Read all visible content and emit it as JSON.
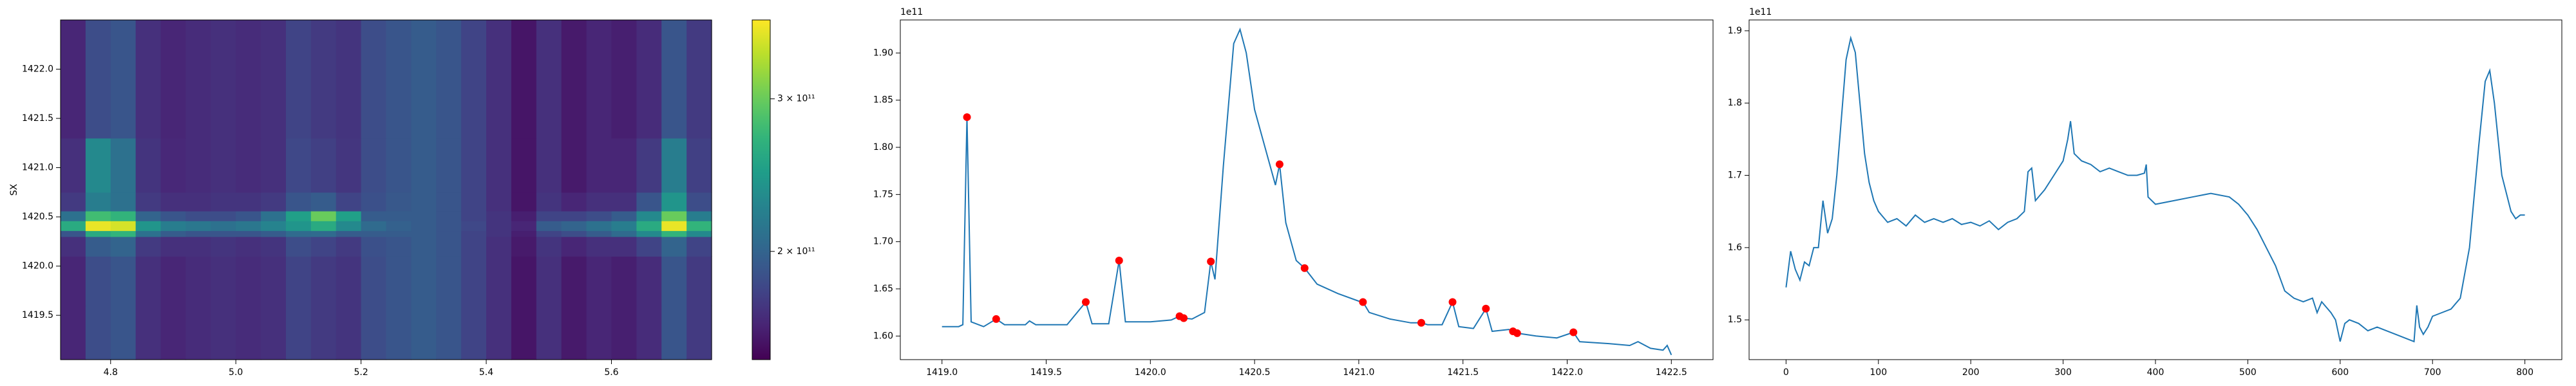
{
  "chart_data": [
    {
      "type": "heatmap",
      "ylabel": "SX",
      "colormap": "viridis",
      "color_scale": "log",
      "clim": [
        150000000000.0,
        370000000000.0
      ],
      "cticks": [
        {
          "value": 200000000000.0,
          "label": "2 × 10¹¹"
        },
        {
          "value": 300000000000.0,
          "label": "3 × 10¹¹"
        }
      ],
      "xlim": [
        4.72,
        5.76
      ],
      "ylim": [
        1419.05,
        1422.5
      ],
      "xticks": [
        4.8,
        {
          "value": 5.0,
          "label": "5.0"
        },
        5.2,
        5.4,
        5.6
      ],
      "yticks": [
        1419.5,
        {
          "value": 1420.0,
          "label": "1420.0"
        },
        1420.5,
        {
          "value": 1421.0,
          "label": "1421.0"
        },
        1421.5,
        {
          "value": 1422.0,
          "label": "1422.0"
        }
      ],
      "x_bins": [
        4.72,
        4.76,
        4.8,
        4.84,
        4.88,
        4.92,
        4.96,
        5.0,
        5.04,
        5.08,
        5.12,
        5.16,
        5.2,
        5.24,
        5.28,
        5.32,
        5.36,
        5.4,
        5.44,
        5.48,
        5.52,
        5.56,
        5.6,
        5.64,
        5.68,
        5.72,
        5.76
      ],
      "y_bins": [
        1419.05,
        1419.6,
        1420.1,
        1420.3,
        1420.36,
        1420.46,
        1420.56,
        1420.75,
        1421.3,
        1422.5
      ],
      "values": [
        [
          165000000000.0,
          185000000000.0,
          190000000000.0,
          170000000000.0,
          165000000000.0,
          168000000000.0,
          170000000000.0,
          168000000000.0,
          170000000000.0,
          180000000000.0,
          175000000000.0,
          172000000000.0,
          185000000000.0,
          190000000000.0,
          195000000000.0,
          190000000000.0,
          180000000000.0,
          170000000000.0,
          158000000000.0,
          170000000000.0,
          160000000000.0,
          165000000000.0,
          162000000000.0,
          168000000000.0,
          190000000000.0,
          175000000000.0
        ],
        [
          165000000000.0,
          185000000000.0,
          190000000000.0,
          170000000000.0,
          165000000000.0,
          168000000000.0,
          170000000000.0,
          168000000000.0,
          170000000000.0,
          180000000000.0,
          175000000000.0,
          172000000000.0,
          185000000000.0,
          190000000000.0,
          195000000000.0,
          190000000000.0,
          180000000000.0,
          170000000000.0,
          158000000000.0,
          170000000000.0,
          160000000000.0,
          165000000000.0,
          162000000000.0,
          168000000000.0,
          190000000000.0,
          175000000000.0
        ],
        [
          170000000000.0,
          195000000000.0,
          200000000000.0,
          175000000000.0,
          170000000000.0,
          170000000000.0,
          172000000000.0,
          170000000000.0,
          172000000000.0,
          185000000000.0,
          180000000000.0,
          175000000000.0,
          187000000000.0,
          190000000000.0,
          195000000000.0,
          190000000000.0,
          180000000000.0,
          170000000000.0,
          160000000000.0,
          172000000000.0,
          165000000000.0,
          170000000000.0,
          170000000000.0,
          180000000000.0,
          200000000000.0,
          180000000000.0
        ],
        [
          190000000000.0,
          260000000000.0,
          270000000000.0,
          210000000000.0,
          195000000000.0,
          190000000000.0,
          190000000000.0,
          190000000000.0,
          195000000000.0,
          205000000000.0,
          205000000000.0,
          195000000000.0,
          195000000000.0,
          195000000000.0,
          195000000000.0,
          190000000000.0,
          180000000000.0,
          172000000000.0,
          162000000000.0,
          180000000000.0,
          185000000000.0,
          195000000000.0,
          205000000000.0,
          230000000000.0,
          270000000000.0,
          230000000000.0
        ],
        [
          260000000000.0,
          360000000000.0,
          350000000000.0,
          240000000000.0,
          220000000000.0,
          215000000000.0,
          210000000000.0,
          215000000000.0,
          225000000000.0,
          240000000000.0,
          260000000000.0,
          230000000000.0,
          205000000000.0,
          198000000000.0,
          195000000000.0,
          190000000000.0,
          182000000000.0,
          172000000000.0,
          165000000000.0,
          195000000000.0,
          200000000000.0,
          210000000000.0,
          220000000000.0,
          260000000000.0,
          360000000000.0,
          270000000000.0
        ],
        [
          210000000000.0,
          280000000000.0,
          270000000000.0,
          200000000000.0,
          190000000000.0,
          185000000000.0,
          185000000000.0,
          190000000000.0,
          210000000000.0,
          250000000000.0,
          300000000000.0,
          250000000000.0,
          195000000000.0,
          195000000000.0,
          195000000000.0,
          190000000000.0,
          180000000000.0,
          172000000000.0,
          162000000000.0,
          180000000000.0,
          180000000000.0,
          185000000000.0,
          195000000000.0,
          230000000000.0,
          300000000000.0,
          220000000000.0
        ],
        [
          175000000000.0,
          220000000000.0,
          210000000000.0,
          175000000000.0,
          170000000000.0,
          170000000000.0,
          172000000000.0,
          172000000000.0,
          175000000000.0,
          190000000000.0,
          195000000000.0,
          180000000000.0,
          187000000000.0,
          192000000000.0,
          195000000000.0,
          190000000000.0,
          180000000000.0,
          170000000000.0,
          158000000000.0,
          172000000000.0,
          165000000000.0,
          170000000000.0,
          170000000000.0,
          190000000000.0,
          240000000000.0,
          185000000000.0
        ],
        [
          170000000000.0,
          230000000000.0,
          210000000000.0,
          172000000000.0,
          166000000000.0,
          168000000000.0,
          170000000000.0,
          168000000000.0,
          170000000000.0,
          182000000000.0,
          178000000000.0,
          173000000000.0,
          185000000000.0,
          190000000000.0,
          195000000000.0,
          190000000000.0,
          180000000000.0,
          170000000000.0,
          158000000000.0,
          170000000000.0,
          160000000000.0,
          165000000000.0,
          165000000000.0,
          175000000000.0,
          220000000000.0,
          178000000000.0
        ],
        [
          165000000000.0,
          185000000000.0,
          190000000000.0,
          170000000000.0,
          165000000000.0,
          168000000000.0,
          170000000000.0,
          168000000000.0,
          170000000000.0,
          180000000000.0,
          175000000000.0,
          172000000000.0,
          185000000000.0,
          190000000000.0,
          195000000000.0,
          190000000000.0,
          180000000000.0,
          170000000000.0,
          158000000000.0,
          170000000000.0,
          160000000000.0,
          165000000000.0,
          162000000000.0,
          168000000000.0,
          190000000000.0,
          175000000000.0
        ]
      ]
    },
    {
      "type": "line",
      "y_offset_label": "1e11",
      "xlim": [
        1418.8,
        1422.7
      ],
      "ylim": [
        157500000000.0,
        193500000000.0
      ],
      "xticks": [
        {
          "value": 1419,
          "label": "1419.0"
        },
        1419.5,
        {
          "value": 1420,
          "label": "1420.0"
        },
        1420.5,
        {
          "value": 1421,
          "label": "1421.0"
        },
        1421.5,
        {
          "value": 1422,
          "label": "1422.0"
        },
        1422.5
      ],
      "yticks": [
        {
          "value": 160000000000.0,
          "label": "1.60"
        },
        {
          "value": 165000000000.0,
          "label": "1.65"
        },
        {
          "value": 170000000000.0,
          "label": "1.70"
        },
        {
          "value": 175000000000.0,
          "label": "1.75"
        },
        {
          "value": 180000000000.0,
          "label": "1.80"
        },
        {
          "value": 185000000000.0,
          "label": "1.85"
        },
        {
          "value": 190000000000.0,
          "label": "1.90"
        }
      ],
      "series": [
        {
          "mode": "lines",
          "color": "#1f77b4",
          "x": [
            1419.0,
            1419.05,
            1419.08,
            1419.1,
            1419.12,
            1419.14,
            1419.2,
            1419.26,
            1419.3,
            1419.4,
            1419.42,
            1419.45,
            1419.6,
            1419.69,
            1419.72,
            1419.8,
            1419.85,
            1419.88,
            1420.0,
            1420.1,
            1420.14,
            1420.16,
            1420.2,
            1420.26,
            1420.29,
            1420.31,
            1420.35,
            1420.4,
            1420.43,
            1420.46,
            1420.5,
            1420.55,
            1420.6,
            1420.62,
            1420.65,
            1420.7,
            1420.74,
            1420.8,
            1420.9,
            1421.0,
            1421.02,
            1421.05,
            1421.15,
            1421.25,
            1421.3,
            1421.33,
            1421.4,
            1421.45,
            1421.48,
            1421.55,
            1421.61,
            1421.64,
            1421.72,
            1421.74,
            1421.76,
            1421.85,
            1421.95,
            1422.03,
            1422.06,
            1422.2,
            1422.3,
            1422.34,
            1422.4,
            1422.46,
            1422.48,
            1422.5
          ],
          "values": [
            161000000000.0,
            161000000000.0,
            161000000000.0,
            161200000000.0,
            183200000000.0,
            161500000000.0,
            161000000000.0,
            161800000000.0,
            161200000000.0,
            161200000000.0,
            161600000000.0,
            161200000000.0,
            161200000000.0,
            163600000000.0,
            161300000000.0,
            161300000000.0,
            168000000000.0,
            161500000000.0,
            161500000000.0,
            161700000000.0,
            162100000000.0,
            161900000000.0,
            161800000000.0,
            162500000000.0,
            167900000000.0,
            166000000000.0,
            178000000000.0,
            191000000000.0,
            192500000000.0,
            190000000000.0,
            184000000000.0,
            180000000000.0,
            176000000000.0,
            178200000000.0,
            172000000000.0,
            168000000000.0,
            167200000000.0,
            165500000000.0,
            164500000000.0,
            163700000000.0,
            163600000000.0,
            162500000000.0,
            161800000000.0,
            161400000000.0,
            161400000000.0,
            161200000000.0,
            161200000000.0,
            163600000000.0,
            161000000000.0,
            160800000000.0,
            162900000000.0,
            160500000000.0,
            160700000000.0,
            160500000000.0,
            160300000000.0,
            160000000000.0,
            159800000000.0,
            160400000000.0,
            159400000000.0,
            159200000000.0,
            159000000000.0,
            159400000000.0,
            158700000000.0,
            158500000000.0,
            159000000000.0,
            158000000000.0
          ]
        },
        {
          "mode": "markers",
          "color": "red",
          "x": [
            1419.12,
            1419.26,
            1419.69,
            1419.85,
            1420.14,
            1420.16,
            1420.29,
            1420.62,
            1420.74,
            1421.02,
            1421.3,
            1421.45,
            1421.61,
            1421.74,
            1421.76,
            1422.03
          ],
          "values": [
            183200000000.0,
            161800000000.0,
            163600000000.0,
            168000000000.0,
            162100000000.0,
            161900000000.0,
            167900000000.0,
            178200000000.0,
            167200000000.0,
            163600000000.0,
            161400000000.0,
            163600000000.0,
            162900000000.0,
            160500000000.0,
            160300000000.0,
            160400000000.0
          ]
        }
      ]
    },
    {
      "type": "line",
      "y_offset_label": "1e11",
      "xlim": [
        -40,
        840
      ],
      "ylim": [
        144500000000.0,
        191500000000.0
      ],
      "xticks": [
        0,
        100,
        200,
        300,
        400,
        500,
        600,
        700,
        800
      ],
      "yticks": [
        {
          "value": 150000000000.0,
          "label": "1.5"
        },
        {
          "value": 160000000000.0,
          "label": "1.6"
        },
        {
          "value": 170000000000.0,
          "label": "1.7"
        },
        {
          "value": 180000000000.0,
          "label": "1.8"
        },
        {
          "value": 190000000000.0,
          "label": "1.9"
        }
      ],
      "series": [
        {
          "mode": "lines",
          "color": "#1f77b4",
          "x": [
            0,
            5,
            10,
            15,
            20,
            25,
            30,
            35,
            40,
            45,
            50,
            55,
            60,
            65,
            70,
            75,
            80,
            85,
            90,
            95,
            100,
            110,
            120,
            130,
            140,
            150,
            160,
            170,
            180,
            190,
            200,
            210,
            220,
            230,
            240,
            250,
            258,
            262,
            266,
            270,
            280,
            290,
            300,
            305,
            308,
            312,
            320,
            330,
            340,
            350,
            360,
            370,
            380,
            388,
            390,
            392,
            400,
            420,
            440,
            460,
            480,
            490,
            500,
            510,
            520,
            530,
            540,
            550,
            560,
            570,
            575,
            580,
            590,
            595,
            600,
            605,
            610,
            620,
            630,
            640,
            650,
            660,
            670,
            680,
            683,
            686,
            690,
            695,
            700,
            710,
            720,
            730,
            740,
            750,
            757,
            762,
            767,
            775,
            785,
            790,
            795,
            800
          ],
          "values": [
            154500000000.0,
            159500000000.0,
            157000000000.0,
            155500000000.0,
            158000000000.0,
            157500000000.0,
            160000000000.0,
            160000000000.0,
            166500000000.0,
            162000000000.0,
            164000000000.0,
            170000000000.0,
            178000000000.0,
            186000000000.0,
            189000000000.0,
            187000000000.0,
            180000000000.0,
            173000000000.0,
            169000000000.0,
            166500000000.0,
            165000000000.0,
            163500000000.0,
            164000000000.0,
            163000000000.0,
            164500000000.0,
            163500000000.0,
            164000000000.0,
            163500000000.0,
            164000000000.0,
            163200000000.0,
            163500000000.0,
            163000000000.0,
            163700000000.0,
            162500000000.0,
            163500000000.0,
            164000000000.0,
            165000000000.0,
            170500000000.0,
            171000000000.0,
            166500000000.0,
            168000000000.0,
            170000000000.0,
            172000000000.0,
            175000000000.0,
            177500000000.0,
            173000000000.0,
            172000000000.0,
            171500000000.0,
            170500000000.0,
            171000000000.0,
            170500000000.0,
            170000000000.0,
            170000000000.0,
            170300000000.0,
            171500000000.0,
            167000000000.0,
            166000000000.0,
            166500000000.0,
            167000000000.0,
            167500000000.0,
            167000000000.0,
            166000000000.0,
            164500000000.0,
            162500000000.0,
            160000000000.0,
            157500000000.0,
            154000000000.0,
            153000000000.0,
            152500000000.0,
            153000000000.0,
            151000000000.0,
            152500000000.0,
            151000000000.0,
            150000000000.0,
            147000000000.0,
            149500000000.0,
            150000000000.0,
            149500000000.0,
            148500000000.0,
            149000000000.0,
            148500000000.0,
            148000000000.0,
            147500000000.0,
            147000000000.0,
            152000000000.0,
            149000000000.0,
            148000000000.0,
            149000000000.0,
            150500000000.0,
            151000000000.0,
            151500000000.0,
            153000000000.0,
            160000000000.0,
            174000000000.0,
            183000000000.0,
            184500000000.0,
            180000000000.0,
            170000000000.0,
            165000000000.0,
            164000000000.0,
            164500000000.0,
            164500000000.0
          ]
        }
      ]
    }
  ]
}
